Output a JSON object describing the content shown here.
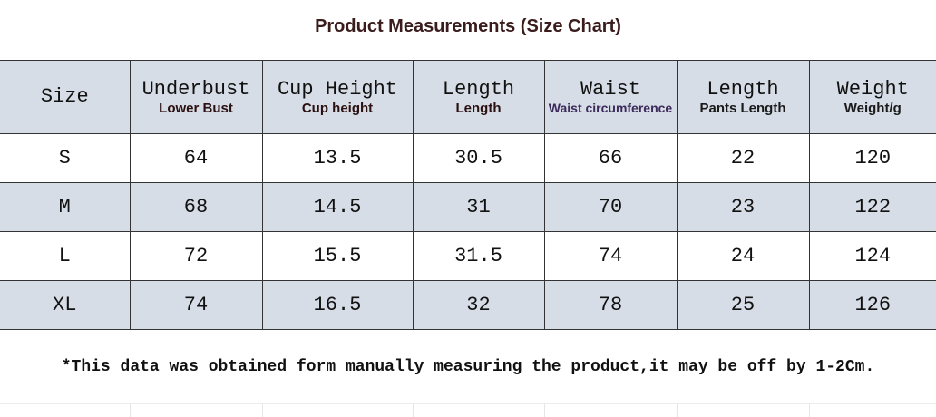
{
  "title": "Product Measurements (Size Chart)",
  "table": {
    "columns": [
      {
        "label": "Size"
      },
      {
        "label": "Underbust",
        "sublabel": "Lower Bust"
      },
      {
        "label": "Cup Height",
        "sublabel": "Cup height"
      },
      {
        "label": "Length",
        "sublabel": "Length"
      },
      {
        "label": "Waist",
        "sublabel": "Waist circumference"
      },
      {
        "label": "Length",
        "sublabel": "Pants Length"
      },
      {
        "label": "Weight",
        "sublabel": "Weight/g"
      }
    ],
    "rows": [
      [
        "S",
        64,
        13.5,
        30.5,
        66,
        22,
        120
      ],
      [
        "M",
        68,
        14.5,
        31,
        70,
        23,
        122
      ],
      [
        "L",
        72,
        15.5,
        31.5,
        74,
        24,
        124
      ],
      [
        "XL",
        74,
        16.5,
        32,
        78,
        25,
        126
      ]
    ]
  },
  "note": "*This data was obtained form manually measuring the product,it may be off by 1-2Cm."
}
